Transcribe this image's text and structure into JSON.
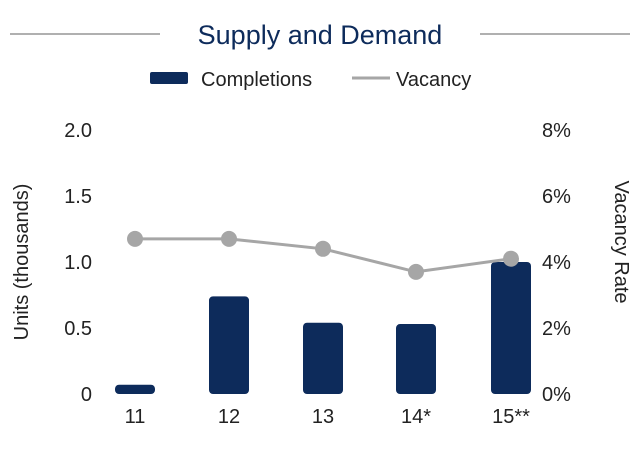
{
  "chart_data": {
    "type": "bar",
    "title": "Supply and Demand",
    "categories": [
      "11",
      "12",
      "13",
      "14*",
      "15**"
    ],
    "series": [
      {
        "name": "Completions",
        "type": "bar",
        "axis": "left",
        "values": [
          0.07,
          0.74,
          0.54,
          0.53,
          1.0
        ]
      },
      {
        "name": "Vacancy",
        "type": "line",
        "axis": "right",
        "values": [
          4.7,
          4.7,
          4.4,
          3.7,
          4.1
        ]
      }
    ],
    "ylabel_left": "Units (thousands)",
    "ylabel_right": "Vacancy Rate",
    "ylim_left": [
      0,
      2.0
    ],
    "ylim_right": [
      0,
      8
    ],
    "yticks_left": [
      "0",
      "0.5",
      "1.0",
      "1.5",
      "2.0"
    ],
    "yticks_left_values": [
      0,
      0.5,
      1.0,
      1.5,
      2.0
    ],
    "yticks_right": [
      "0%",
      "2%",
      "4%",
      "6%",
      "8%"
    ],
    "yticks_right_values": [
      0,
      2,
      4,
      6,
      8
    ],
    "grid": false,
    "legend_position": "top-center",
    "colors": {
      "bar": "#0d2b5b",
      "line": "#a6a6a6",
      "title": "#0d2b5b",
      "rule": "#b0b0b0"
    }
  }
}
